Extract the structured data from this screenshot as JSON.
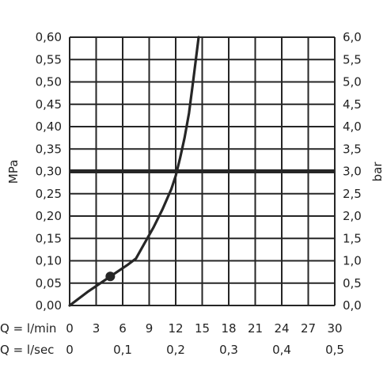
{
  "chart_data": {
    "type": "line",
    "left_axis": {
      "label": "MPa",
      "ticks": [
        "0,00",
        "0,05",
        "0,10",
        "0,15",
        "0,20",
        "0,25",
        "0,30",
        "0,35",
        "0,40",
        "0,45",
        "0,50",
        "0,55",
        "0,60"
      ],
      "range": [
        0,
        0.6
      ]
    },
    "right_axis": {
      "label": "bar",
      "ticks": [
        "0,0",
        "0,5",
        "1,0",
        "1,5",
        "2,0",
        "2,5",
        "3,0",
        "3,5",
        "4,0",
        "4,5",
        "5,0",
        "5,5",
        "6,0"
      ],
      "range": [
        0,
        6
      ]
    },
    "x_axis_lmin": {
      "label": "Q = l/min",
      "ticks": [
        "0",
        "3",
        "6",
        "9",
        "12",
        "15",
        "18",
        "21",
        "24",
        "27",
        "30"
      ],
      "range": [
        0,
        30
      ]
    },
    "x_axis_lsec": {
      "label": "Q = l/sec",
      "ticks": [
        "0",
        "0,1",
        "0,2",
        "0,3",
        "0,4",
        "0,5"
      ],
      "tick_values": [
        0,
        0.1,
        0.2,
        0.3,
        0.4,
        0.5
      ]
    },
    "series": [
      {
        "x": [
          0,
          2,
          4.6,
          6.5,
          7.5,
          8.5,
          9.5,
          10.5,
          11.5,
          12,
          12.5,
          13,
          13.5,
          14,
          14.6
        ],
        "y": [
          0,
          0.03,
          0.065,
          0.09,
          0.105,
          0.14,
          0.175,
          0.215,
          0.26,
          0.29,
          0.33,
          0.375,
          0.43,
          0.505,
          0.6
        ]
      }
    ],
    "marker": {
      "x": 4.6,
      "y": 0.065
    },
    "reference_line": {
      "y": 0.3
    },
    "intersection": {
      "x": 12,
      "y": 0.3
    },
    "grid": true,
    "colors": {
      "line": "#262626",
      "grid": "#262626",
      "text": "#222222"
    }
  }
}
